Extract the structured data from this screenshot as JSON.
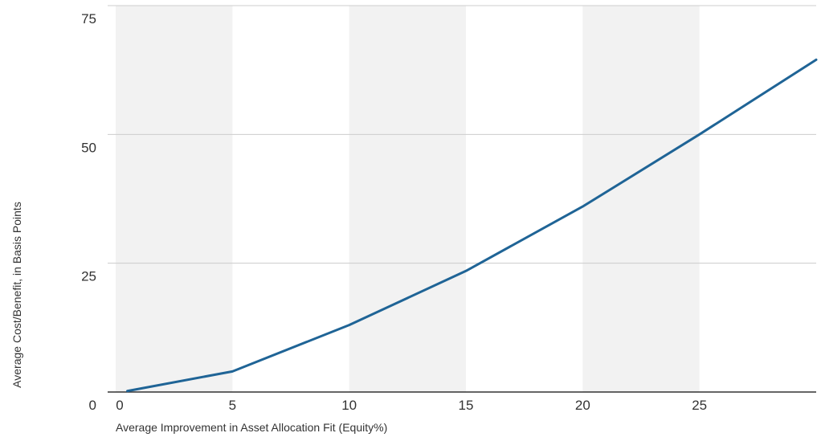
{
  "chart_data": {
    "type": "line",
    "title": "",
    "xlabel": "Average Improvement in Asset Allocation Fit (Equity%)",
    "ylabel": "Average Cost/Benefit, in Basis Points",
    "xlim": [
      0,
      30
    ],
    "ylim": [
      0,
      75
    ],
    "x_ticks": [
      "0",
      "5",
      "10",
      "15",
      "20",
      "25"
    ],
    "y_ticks": [
      "0",
      "25",
      "50",
      "75"
    ],
    "grid": "horizontal",
    "shaded_bands": [
      [
        0,
        5
      ],
      [
        10,
        15
      ],
      [
        20,
        25
      ]
    ],
    "series": [
      {
        "color": "#1f6496",
        "x": [
          0.5,
          5,
          10,
          15,
          20,
          25,
          30
        ],
        "y": [
          0.2,
          4,
          13,
          23.5,
          36,
          50,
          64.5
        ]
      }
    ]
  },
  "colors": {
    "band": "#f2f2f2",
    "grid": "#cccccc",
    "axis": "#333333",
    "line": "#1f6496"
  }
}
